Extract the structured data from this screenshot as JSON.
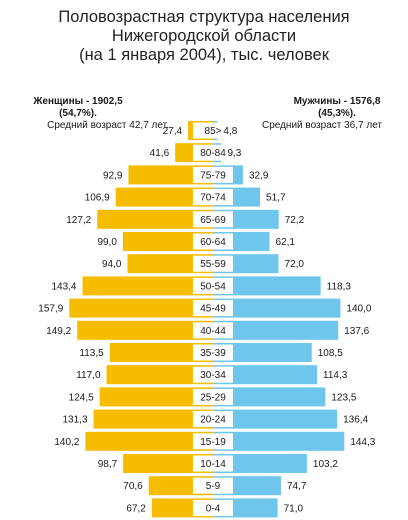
{
  "title": {
    "line1": "Половозрастная структура населения",
    "line2": "Нижегородской области",
    "line3": "(на 1 января 2004), тыс. человек"
  },
  "legend": {
    "women": {
      "label": "Женщины - 1902,5",
      "share": "(54,7%).",
      "avg_age": "Средний возраст 42,7 лет."
    },
    "men": {
      "label": "Мужчины - 1576,8",
      "share": "(45,3%).",
      "avg_age": "Средний возраст 36,7 лет"
    }
  },
  "colors": {
    "women": "#f5bc00",
    "men": "#6ec6ec",
    "age_label_bg": "#ffffff"
  },
  "chart_data": {
    "type": "bar",
    "orientation": "horizontal-pyramid",
    "categories": [
      "85>",
      "80-84",
      "75-79",
      "70-74",
      "65-69",
      "60-64",
      "55-59",
      "50-54",
      "45-49",
      "40-44",
      "35-39",
      "30-34",
      "25-29",
      "20-24",
      "15-19",
      "10-14",
      "5-9",
      "0-4"
    ],
    "series": [
      {
        "name": "Женщины",
        "values": [
          27.4,
          41.6,
          92.9,
          106.9,
          127.2,
          99.0,
          94.0,
          143.4,
          157.9,
          149.2,
          113.5,
          117.0,
          124.5,
          131.3,
          140.2,
          98.7,
          70.6,
          67.2
        ],
        "labels": [
          "27,4",
          "41,6",
          "92,9",
          "106,9",
          "127,2",
          "99,0",
          "94,0",
          "143,4",
          "157,9",
          "149,2",
          "113,5",
          "117,0",
          "124,5",
          "131,3",
          "140,2",
          "98,7",
          "70,6",
          "67,2"
        ]
      },
      {
        "name": "Мужчины",
        "values": [
          4.8,
          9.3,
          32.9,
          51.7,
          72.2,
          62.1,
          72.0,
          118.3,
          140.0,
          137.6,
          108.5,
          114.3,
          123.5,
          136.4,
          144.3,
          103.2,
          74.7,
          71.0
        ],
        "labels": [
          "4,8",
          "9,3",
          "32,9",
          "51,7",
          "72,2",
          "62,1",
          "72,0",
          "118,3",
          "140,0",
          "137,6",
          "108,5",
          "114,3",
          "123,5",
          "136,4",
          "144,3",
          "103,2",
          "74,7",
          "71,0"
        ]
      }
    ],
    "xlim": [
      0,
      160
    ]
  }
}
